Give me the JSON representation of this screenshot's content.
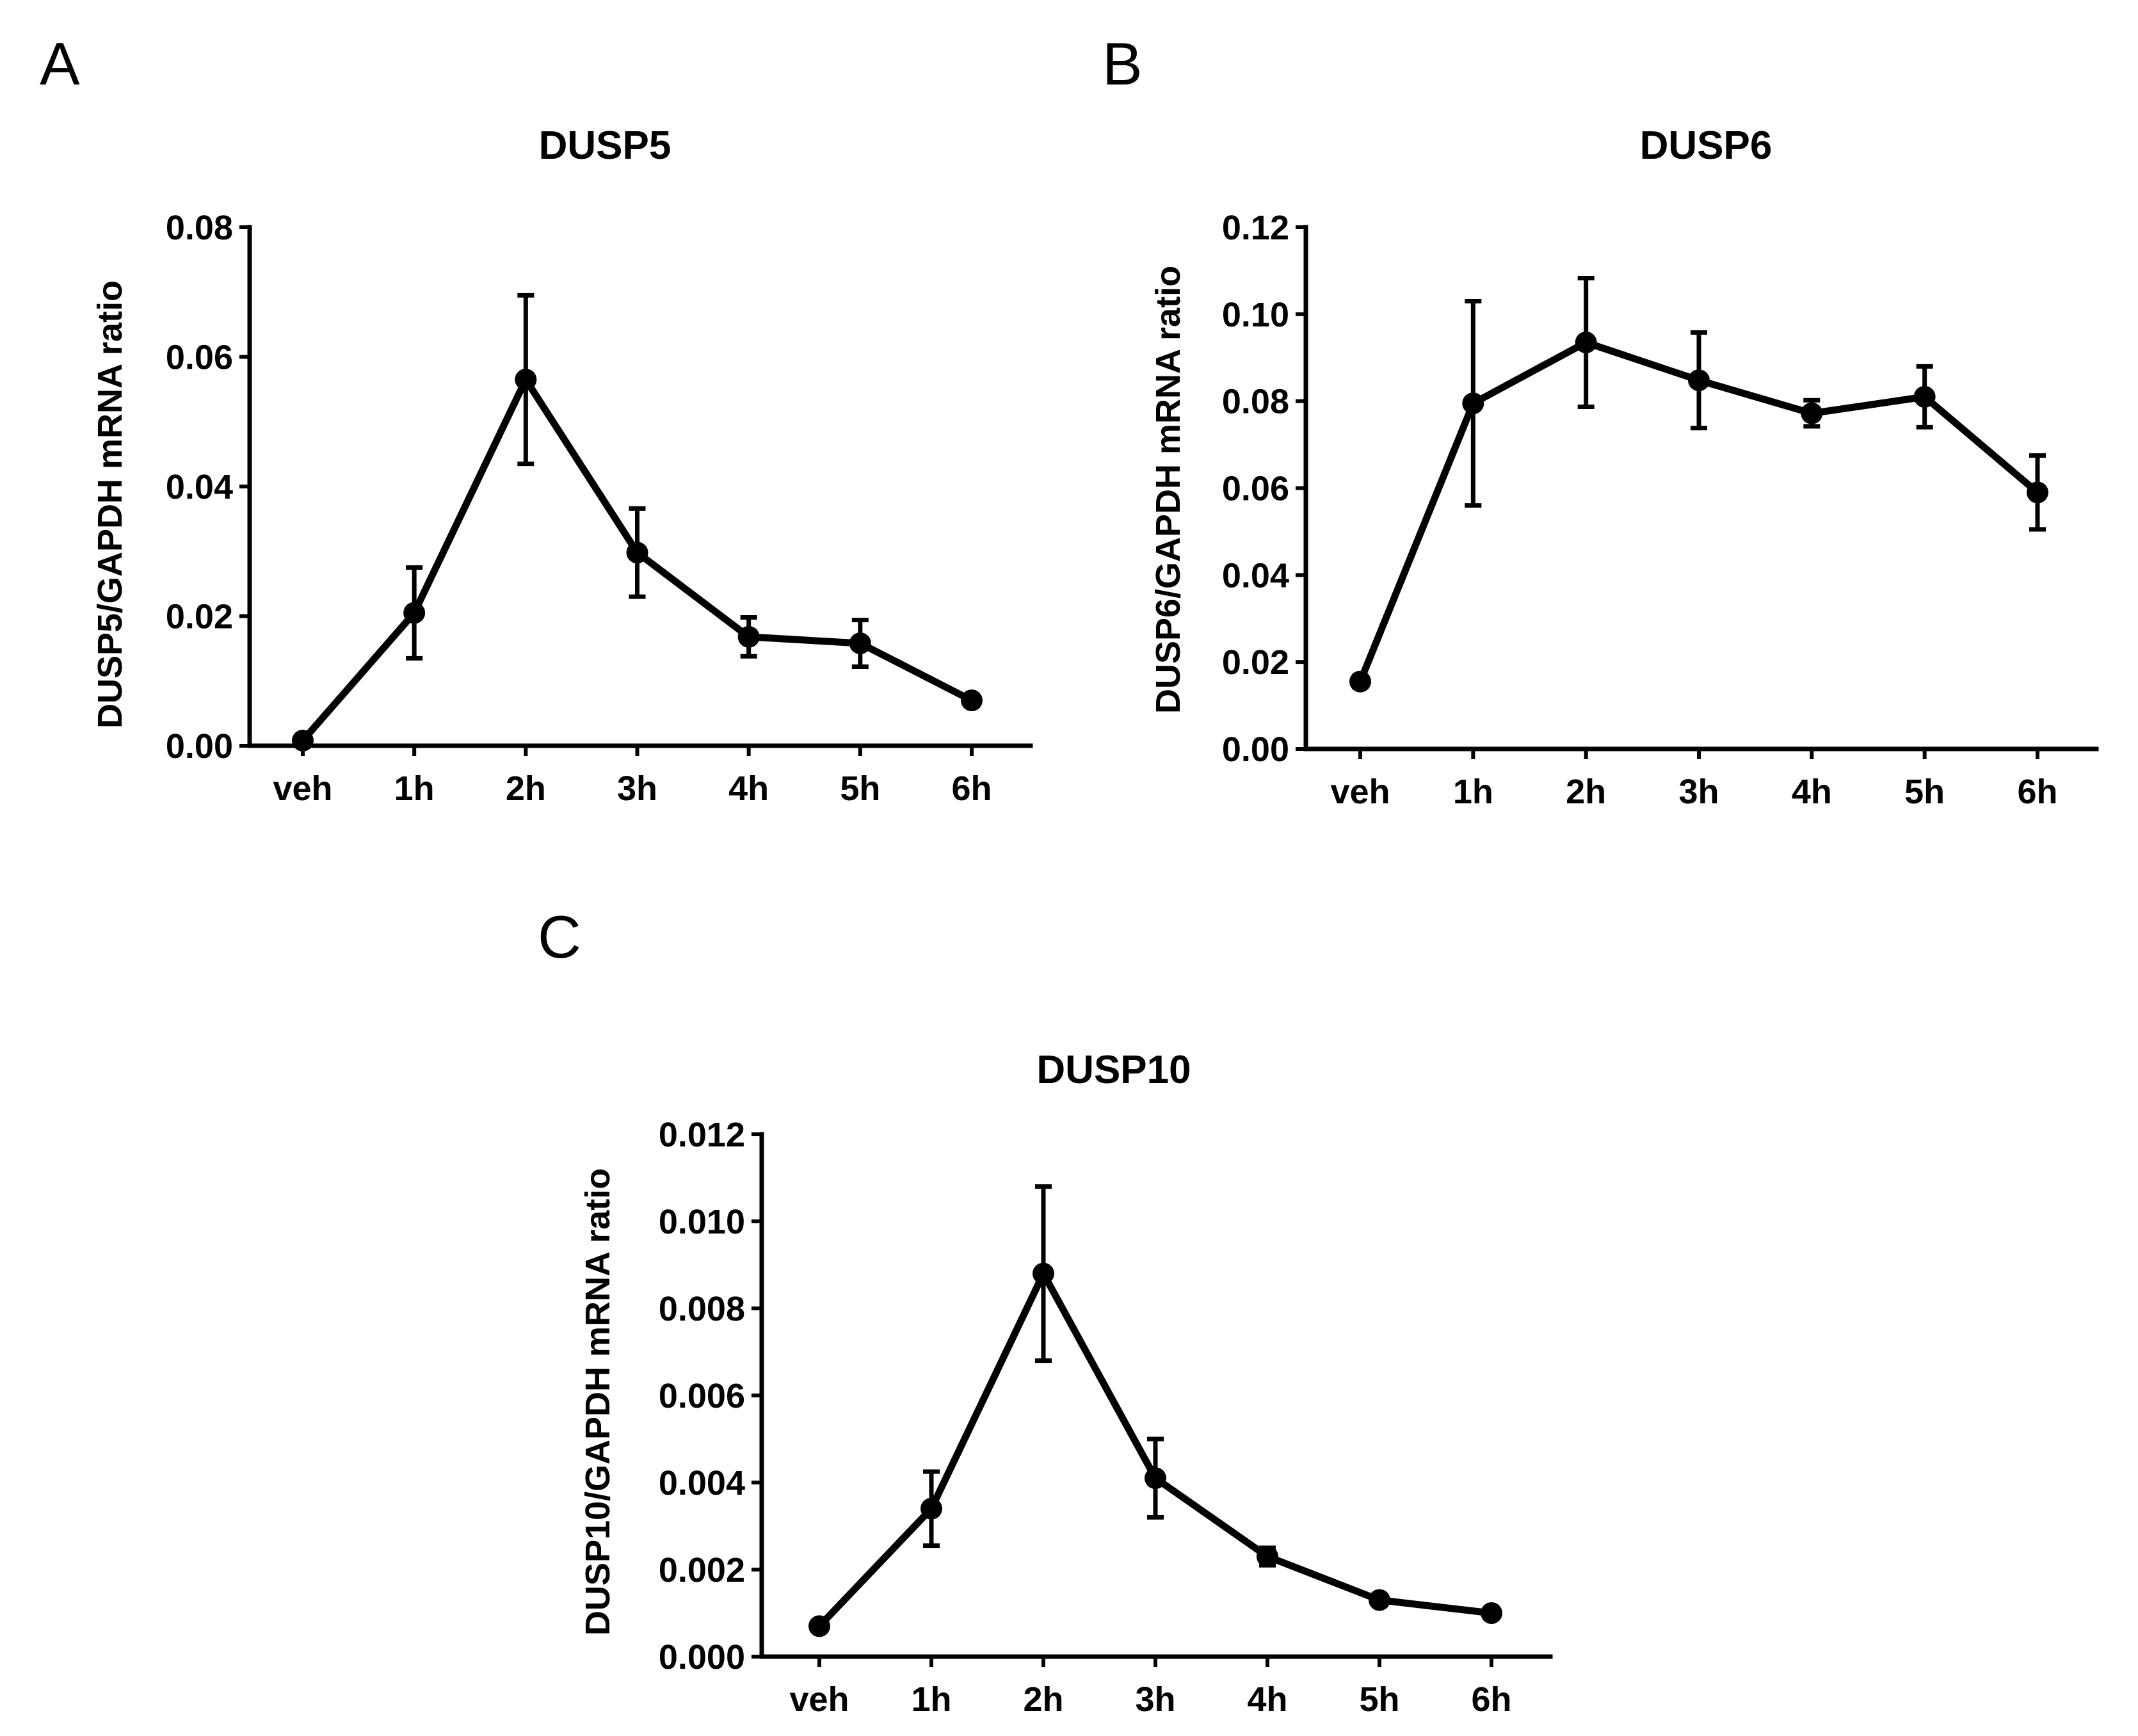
{
  "chart_data": [
    {
      "panel": "A",
      "type": "line",
      "title": "DUSP5",
      "xlabel": "",
      "ylabel": "DUSP5/GAPDH mRNA ratio",
      "categories": [
        "veh",
        "1h",
        "2h",
        "3h",
        "4h",
        "5h",
        "6h"
      ],
      "series": [
        {
          "name": "DUSP5",
          "values": [
            0.0008,
            0.0205,
            0.0565,
            0.0298,
            0.0168,
            0.0158,
            0.007
          ],
          "errors": [
            0.0004,
            0.007,
            0.013,
            0.0068,
            0.003,
            0.0036,
            0.0008
          ]
        }
      ],
      "ylim": [
        0,
        0.08
      ],
      "yticks": [
        0.0,
        0.02,
        0.04,
        0.06,
        0.08
      ],
      "ytick_labels": [
        "0.00",
        "0.02",
        "0.04",
        "0.06",
        "0.08"
      ]
    },
    {
      "panel": "B",
      "type": "line",
      "title": "DUSP6",
      "xlabel": "",
      "ylabel": "DUSP6/GAPDH mRNA ratio",
      "categories": [
        "veh",
        "1h",
        "2h",
        "3h",
        "4h",
        "5h",
        "6h"
      ],
      "series": [
        {
          "name": "DUSP6",
          "values": [
            0.0155,
            0.0795,
            0.0935,
            0.0848,
            0.0772,
            0.081,
            0.059
          ],
          "errors": [
            0.0012,
            0.0235,
            0.0148,
            0.011,
            0.003,
            0.007,
            0.0085
          ]
        }
      ],
      "ylim": [
        0,
        0.12
      ],
      "yticks": [
        0.0,
        0.02,
        0.04,
        0.06,
        0.08,
        0.1,
        0.12
      ],
      "ytick_labels": [
        "0.00",
        "0.02",
        "0.04",
        "0.06",
        "0.08",
        "0.10",
        "0.12"
      ]
    },
    {
      "panel": "C",
      "type": "line",
      "title": "DUSP10",
      "xlabel": "",
      "ylabel": "DUSP10/GAPDH mRNA ratio",
      "categories": [
        "veh",
        "1h",
        "2h",
        "3h",
        "4h",
        "5h",
        "6h"
      ],
      "series": [
        {
          "name": "DUSP10",
          "values": [
            0.0007,
            0.0034,
            0.0088,
            0.0041,
            0.0023,
            0.0013,
            0.001
          ],
          "errors": [
            5e-05,
            0.00085,
            0.002,
            0.0009,
            0.0002,
            5e-05,
            5e-05
          ]
        }
      ],
      "ylim": [
        0,
        0.012
      ],
      "yticks": [
        0.0,
        0.002,
        0.004,
        0.006,
        0.008,
        0.01,
        0.012
      ],
      "ytick_labels": [
        "0.000",
        "0.002",
        "0.004",
        "0.006",
        "0.008",
        "0.010",
        "0.012"
      ]
    }
  ]
}
